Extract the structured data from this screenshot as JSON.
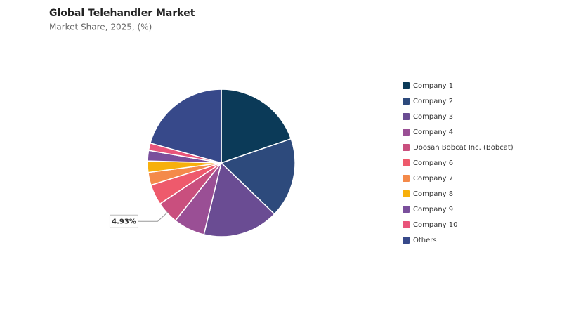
{
  "chart_data": {
    "type": "pie",
    "title": "Global Telehandler Market",
    "subtitle": "Market Share, 2025, (%)",
    "categories": [
      "Company 1",
      "Company 2",
      "Company 3",
      "Company 4",
      "Doosan Bobcat Inc. (Bobcat)",
      "Company 6",
      "Company 7",
      "Company 8",
      "Company 9",
      "Company 10",
      "Others"
    ],
    "values": [
      19.7,
      17.5,
      16.6,
      6.9,
      4.93,
      4.5,
      2.8,
      2.5,
      2.3,
      1.6,
      20.67
    ],
    "value_labels": [
      null,
      null,
      null,
      null,
      "4.93%",
      null,
      null,
      null,
      null,
      null,
      null
    ],
    "colors": [
      "#0b3a58",
      "#2d4a7c",
      "#6a4c93",
      "#9a4f95",
      "#c94f7e",
      "#ee5a6c",
      "#f48a4a",
      "#f7b00c",
      "#7a4f9c",
      "#e9557b",
      "#37498a"
    ],
    "legend": "right"
  }
}
